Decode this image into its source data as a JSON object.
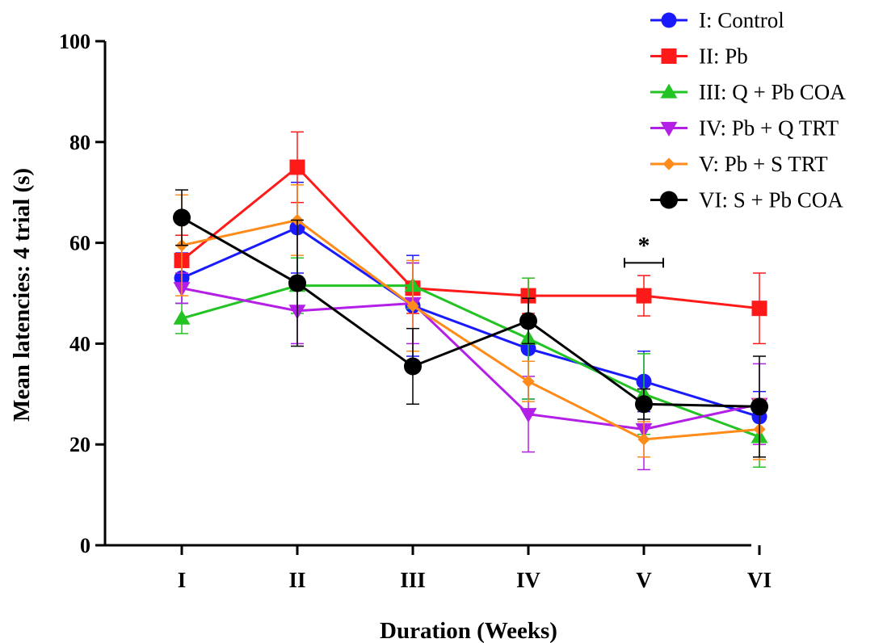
{
  "chart_data": {
    "type": "line",
    "xlabel": "Duration (Weeks)",
    "ylabel": "Mean latencies: 4 trial (s)",
    "categories": [
      "I",
      "II",
      "III",
      "IV",
      "V",
      "VI"
    ],
    "ylim": [
      0,
      100
    ],
    "yticks": [
      0,
      20,
      40,
      60,
      80,
      100
    ],
    "grid": false,
    "legend_position": "top-right",
    "series": [
      {
        "name": "I: Control",
        "color": "#1a1aff",
        "marker": "circle",
        "values": [
          53,
          63,
          47.5,
          39,
          32.5,
          25.5
        ],
        "errors": [
          5,
          9,
          10,
          10,
          6,
          5
        ]
      },
      {
        "name": "II: Pb",
        "color": "#ff1a1a",
        "marker": "square",
        "values": [
          56.5,
          75,
          51,
          49.5,
          49.5,
          47
        ],
        "errors": [
          5,
          7,
          5,
          3.5,
          4,
          7
        ]
      },
      {
        "name": "III: Q + Pb COA",
        "color": "#22c322",
        "marker": "triangle-up",
        "values": [
          45,
          51.5,
          51.5,
          41,
          30,
          21.5
        ],
        "errors": [
          3,
          5.5,
          4.5,
          12,
          8,
          6
        ]
      },
      {
        "name": "IV: Pb + Q TRT",
        "color": "#b41fe8",
        "marker": "triangle-down",
        "values": [
          51,
          46.5,
          48,
          26,
          23,
          28
        ],
        "errors": [
          3,
          6.5,
          8,
          7.5,
          8,
          8
        ]
      },
      {
        "name": "V: Pb + S TRT",
        "color": "#ff8c1a",
        "marker": "diamond",
        "values": [
          59.5,
          64.5,
          47.5,
          32.5,
          21,
          23
        ],
        "errors": [
          10,
          7,
          9,
          4,
          3.5,
          6
        ]
      },
      {
        "name": "VI: S + Pb COA",
        "color": "#000000",
        "marker": "circle",
        "values": [
          65,
          52,
          35.5,
          44.5,
          28,
          27.5
        ],
        "errors": [
          5.5,
          12.5,
          7.5,
          4.5,
          3,
          10
        ]
      }
    ],
    "annotations": [
      {
        "text": "*",
        "category": "V",
        "y": 57
      }
    ]
  }
}
